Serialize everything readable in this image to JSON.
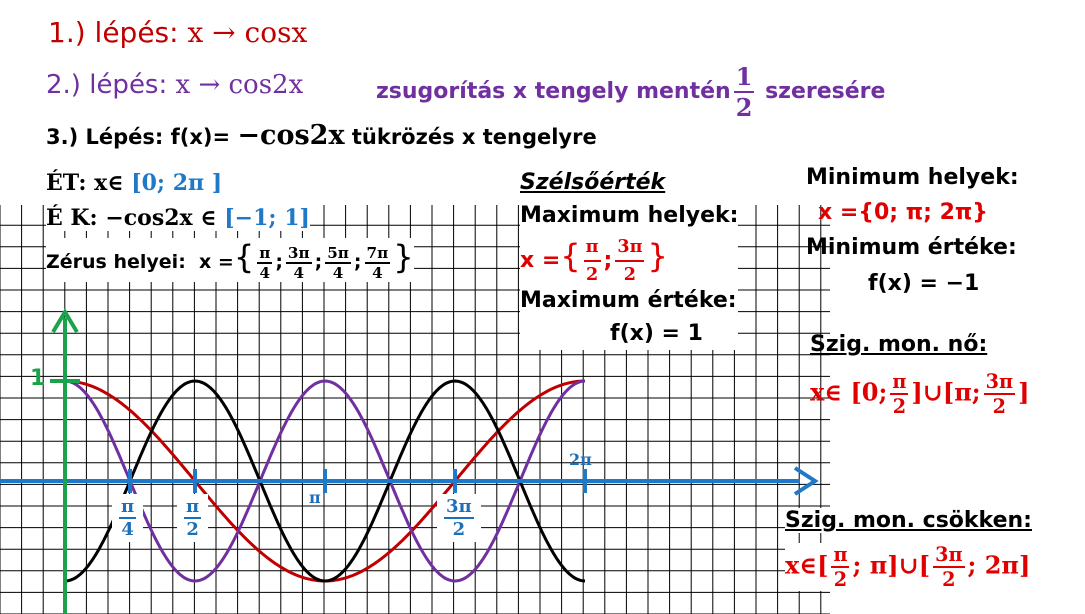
{
  "steps": [
    {
      "label": "1.) lépés:",
      "formula": "x → cosx"
    },
    {
      "label": "2.) lépés:",
      "formula": "x → cos2x",
      "note": "zsugorítás x tengely mentén",
      "frac_num": "1",
      "frac_den": "2",
      "note_end": "szeresére"
    },
    {
      "label": "3.) Lépés: f(x)=",
      "formula": "−cos2x",
      "note": "tükrözés x tengelyre"
    }
  ],
  "domain": {
    "label": "ÉT: x∈",
    "value": "[0; 2π ]"
  },
  "range": {
    "label": "É K: −cos2x ∈",
    "value": "[−1; 1]"
  },
  "zeros": {
    "label": "Zérus helyei:",
    "prefix": "x =",
    "open": "{",
    "close": "}",
    "values": [
      {
        "num": "π",
        "den": "4"
      },
      {
        "num": "3π",
        "den": "4"
      },
      {
        "num": "5π",
        "den": "4"
      },
      {
        "num": "7π",
        "den": "4"
      }
    ]
  },
  "extremum": {
    "title": "Szélsőérték",
    "max_places": "Maximum helyek:",
    "max_prefix": "x =",
    "max_values": [
      {
        "num": "π",
        "den": "2"
      },
      {
        "num": "3π",
        "den": "2"
      }
    ],
    "max_value_label": "Maximum értéke:",
    "max_value": "f(x) = 1",
    "min_places": "Minimum helyek:",
    "min_x": "x ={0; π; 2π}",
    "min_value_label": "Minimum értéke:",
    "min_value": "f(x) = −1"
  },
  "increasing": {
    "label": "Szig. mon. nő:",
    "prefix": "x∈",
    "a": "[0;",
    "f1": {
      "num": "π",
      "den": "2"
    },
    "mid": "]∪[π;",
    "f2": {
      "num": "3π",
      "den": "2"
    },
    "end": "]"
  },
  "decreasing": {
    "label": "Szig. mon. csökken:",
    "prefix": "x∈[",
    "f1": {
      "num": "π",
      "den": "2"
    },
    "mid": "; π]∪[",
    "f2": {
      "num": "3π",
      "den": "2"
    },
    "end": "; 2π]"
  },
  "graph": {
    "y_label": "1",
    "x_labels": [
      {
        "num": "π",
        "den": "4"
      },
      {
        "num": "π",
        "den": "2"
      },
      "π",
      {
        "num": "3π",
        "den": "2"
      },
      "2π"
    ]
  }
}
